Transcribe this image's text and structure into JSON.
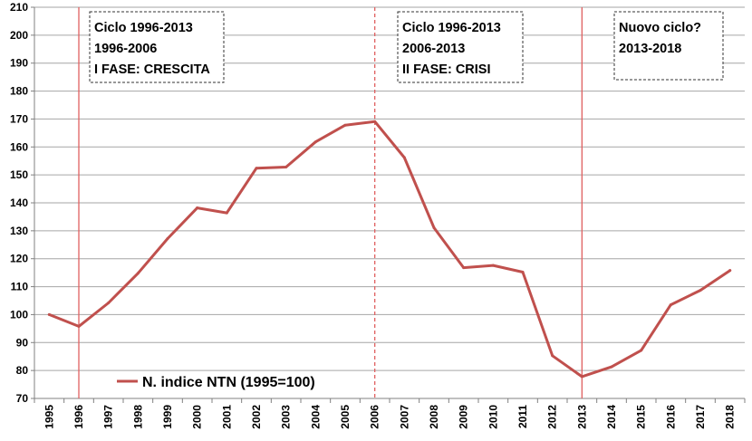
{
  "chart_data": {
    "type": "line",
    "x": [
      "1995",
      "1996",
      "1997",
      "1998",
      "1999",
      "2000",
      "2001",
      "2002",
      "2003",
      "2004",
      "2005",
      "2006",
      "2007",
      "2008",
      "2009",
      "2010",
      "2011",
      "2012",
      "2013",
      "2014",
      "2015",
      "2016",
      "2017",
      "2018"
    ],
    "series": [
      {
        "name": "N. indice NTN (1995=100)",
        "color": "#c0504d",
        "values": [
          100,
          95.8,
          104.2,
          114.8,
          127.2,
          138.2,
          136.4,
          152.4,
          152.8,
          161.8,
          167.8,
          169.1,
          156.2,
          131.1,
          116.8,
          117.6,
          115.2,
          85.3,
          77.8,
          81.3,
          87.2,
          103.5,
          108.7,
          115.8
        ]
      }
    ],
    "ylim": [
      70,
      210
    ],
    "yticks": [
      70,
      80,
      90,
      100,
      110,
      120,
      130,
      140,
      150,
      160,
      170,
      180,
      190,
      200,
      210
    ],
    "grid": "horizontal",
    "legend": "bottom-left",
    "vertical_markers": [
      {
        "x": "1996",
        "style": "solid",
        "color": "#e06060"
      },
      {
        "x": "2006",
        "style": "dashed",
        "color": "#e06060"
      },
      {
        "x": "2013",
        "style": "solid",
        "color": "#e06060"
      }
    ],
    "annotations": [
      {
        "lines": [
          "Ciclo 1996-2013",
          "1996-2006",
          "I FASE: CRESCITA"
        ]
      },
      {
        "lines": [
          "Ciclo 1996-2013",
          "2006-2013",
          "II FASE: CRISI"
        ]
      },
      {
        "lines": [
          "Nuovo ciclo?",
          "2013-2018"
        ]
      }
    ]
  }
}
